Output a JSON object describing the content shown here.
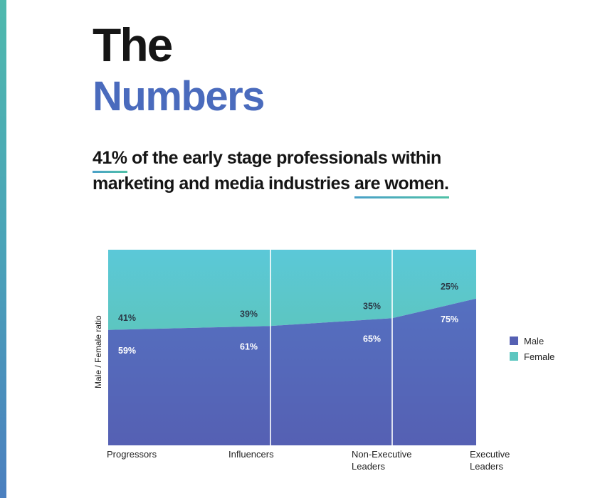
{
  "heading": {
    "line1": "The",
    "line2": "Numbers"
  },
  "subtitle": {
    "highlight1": "41%",
    "text1": " of the early stage professionals within",
    "text2": "marketing and media industries ",
    "highlight2": "are women."
  },
  "colors": {
    "male": "#5560b3",
    "male_top": "#5570c0",
    "female": "#5cc6c0",
    "female_top": "#5bc8d8",
    "title_blue": "#4a6bbd",
    "accent_gradient_start": "#4aa0c8",
    "accent_gradient_end": "#4fc1a6"
  },
  "chart_data": {
    "type": "area",
    "stacked": true,
    "percent_stacked": true,
    "ylabel": "Male / Female ratio",
    "categories": [
      "Progressors",
      "Influencers",
      "Non-Executive Leaders",
      "Executive Leaders"
    ],
    "category_lines": [
      [
        "Progressors"
      ],
      [
        "Influencers"
      ],
      [
        "Non-Executive",
        "Leaders"
      ],
      [
        "Executive",
        "Leaders"
      ]
    ],
    "series": [
      {
        "name": "Male",
        "values": [
          59,
          61,
          65,
          75
        ],
        "labels": [
          "59%",
          "61%",
          "65%",
          "75%"
        ]
      },
      {
        "name": "Female",
        "values": [
          41,
          39,
          35,
          25
        ],
        "labels": [
          "41%",
          "39%",
          "35%",
          "25%"
        ]
      }
    ],
    "ylim": [
      0,
      100
    ],
    "legend": [
      "Male",
      "Female"
    ],
    "legend_position": "right"
  }
}
